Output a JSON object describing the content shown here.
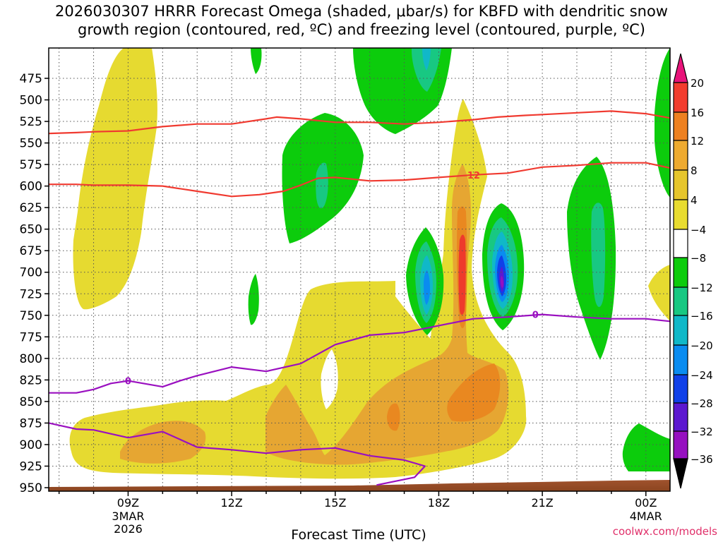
{
  "chart_data": {
    "type": "heatmap",
    "title_line1": "2026030307 HRRR Forecast Omega (shaded, μbar/s) for KBFD with dendritic snow",
    "title_line2": "growth region (contoured, red, ºC) and freezing level (contoured, purple, ºC)",
    "xlabel": "Forecast Time (UTC)",
    "ylabel": "Pressure (hPa)",
    "y_ticks": [
      475,
      500,
      525,
      550,
      575,
      600,
      625,
      650,
      675,
      700,
      725,
      750,
      775,
      800,
      825,
      850,
      875,
      900,
      925,
      950
    ],
    "ylim": [
      950,
      460
    ],
    "xlim_hours": [
      6.7,
      24.7
    ],
    "x_ticks": [
      {
        "hour": 9,
        "label": "09Z",
        "sub1": "3MAR",
        "sub2": "2026"
      },
      {
        "hour": 12,
        "label": "12Z",
        "sub1": "",
        "sub2": ""
      },
      {
        "hour": 15,
        "label": "15Z",
        "sub1": "",
        "sub2": ""
      },
      {
        "hour": 18,
        "label": "18Z",
        "sub1": "",
        "sub2": ""
      },
      {
        "hour": 21,
        "label": "21Z",
        "sub1": "",
        "sub2": ""
      },
      {
        "hour": 24,
        "label": "00Z",
        "sub1": "4MAR",
        "sub2": ""
      }
    ],
    "colorbar": {
      "levels": [
        -36,
        -32,
        -28,
        -24,
        -20,
        -16,
        -12,
        -8,
        -4,
        4,
        8,
        12,
        16,
        20
      ],
      "labels": [
        "20",
        "16",
        "12",
        "8",
        "4",
        "−4",
        "−8",
        "−12",
        "−16",
        "−20",
        "−24",
        "−28",
        "−32",
        "−36"
      ],
      "colors_top_to_bottom": [
        "#e8137a",
        "#f23c2e",
        "#ee8020",
        "#eeaa30",
        "#e6c52c",
        "#e8dc30",
        "#ffffff",
        "#0ccc0c",
        "#18c882",
        "#10b8c8",
        "#0a8cf0",
        "#1040e8",
        "#5c18d0",
        "#9610c0",
        "#a0a0a0",
        "#000000"
      ]
    },
    "series": [
      {
        "name": "Dendritic growth region -12 °C isotherm (upper)",
        "color": "#f03a30",
        "points": [
          [
            6.7,
            539
          ],
          [
            7.5,
            538
          ],
          [
            8,
            537
          ],
          [
            9,
            536
          ],
          [
            10,
            531
          ],
          [
            11,
            528
          ],
          [
            12,
            528
          ],
          [
            13,
            522
          ],
          [
            13.3,
            520
          ],
          [
            14,
            522
          ],
          [
            15,
            526
          ],
          [
            16,
            526
          ],
          [
            17,
            528
          ],
          [
            18,
            526
          ],
          [
            19,
            523
          ],
          [
            19.7,
            520
          ],
          [
            20.5,
            518
          ],
          [
            21,
            517
          ],
          [
            22,
            515
          ],
          [
            23,
            513
          ],
          [
            24,
            516
          ],
          [
            24.7,
            521
          ]
        ]
      },
      {
        "name": "Dendritic growth region -12 °C isotherm (lower)",
        "color": "#f03a30",
        "points": [
          [
            6.7,
            598
          ],
          [
            7.5,
            598
          ],
          [
            8,
            599
          ],
          [
            9,
            599
          ],
          [
            10,
            600
          ],
          [
            11,
            606
          ],
          [
            12,
            612
          ],
          [
            12.8,
            610
          ],
          [
            13.5,
            606
          ],
          [
            14,
            599
          ],
          [
            14.5,
            591
          ],
          [
            15,
            590
          ],
          [
            16,
            594
          ],
          [
            17,
            593
          ],
          [
            18,
            590
          ],
          [
            19,
            587
          ],
          [
            20,
            585
          ],
          [
            21,
            578
          ],
          [
            22,
            576
          ],
          [
            23,
            573
          ],
          [
            24,
            573
          ],
          [
            24.7,
            579
          ]
        ],
        "label": "−12"
      },
      {
        "name": "Freezing level 0 °C isotherm (upper)",
        "color": "#9a10c0",
        "points": [
          [
            6.7,
            840
          ],
          [
            7.5,
            840
          ],
          [
            8,
            836
          ],
          [
            8.5,
            829
          ],
          [
            9,
            826
          ],
          [
            10,
            833
          ],
          [
            10.5,
            826
          ],
          [
            11,
            820
          ],
          [
            12,
            810
          ],
          [
            13,
            815
          ],
          [
            14,
            806
          ],
          [
            15,
            784
          ],
          [
            16,
            773
          ],
          [
            17,
            770
          ],
          [
            18,
            762
          ],
          [
            19,
            754
          ],
          [
            20,
            752
          ],
          [
            21,
            749
          ],
          [
            22,
            752
          ],
          [
            23,
            754
          ],
          [
            24,
            754
          ],
          [
            24.7,
            757
          ]
        ],
        "label": "0"
      },
      {
        "name": "Freezing level 0 °C isotherm (lower)",
        "color": "#9a10c0",
        "points": [
          [
            6.7,
            875
          ],
          [
            7.5,
            882
          ],
          [
            8,
            883
          ],
          [
            9,
            892
          ],
          [
            10,
            885
          ],
          [
            11,
            903
          ],
          [
            12,
            906
          ],
          [
            13,
            910
          ],
          [
            14,
            906
          ],
          [
            15,
            904
          ],
          [
            16,
            913
          ],
          [
            17,
            918
          ],
          [
            17.6,
            925
          ],
          [
            17.3,
            938
          ],
          [
            16.2,
            947
          ]
        ]
      }
    ],
    "shading": [
      {
        "value_range": "4 to 8",
        "region": "broad low-level ascent 820-935 hPa, 07Z-01Z; columns near 08-10Z (475-705 hPa) and 18-19Z (500-930 hPa)"
      },
      {
        "value_range": "8 to 12",
        "region": "850-920 hPa 08Z-11Z; 15Z-20Z 760-920 hPa; column 18.5-19.2Z 550-900 hPa"
      },
      {
        "value_range": "12 to 20",
        "region": "17Z-20Z 800-860 hPa; core 19Z 600-720 hPa peaking near 20"
      },
      {
        "value_range": "-4 to -12",
        "region": "descent cells near 15Z (530-625 hPa), 17Z (460-520 hPa), 23Z (560-770 hPa), 24.5Z"
      },
      {
        "value_range": "-12 to -28",
        "region": "cores near 18Z and 20Z at 640-710 hPa, minimum about -28 at 20Z 675 hPa"
      }
    ]
  },
  "credit": "coolwx.com/models"
}
